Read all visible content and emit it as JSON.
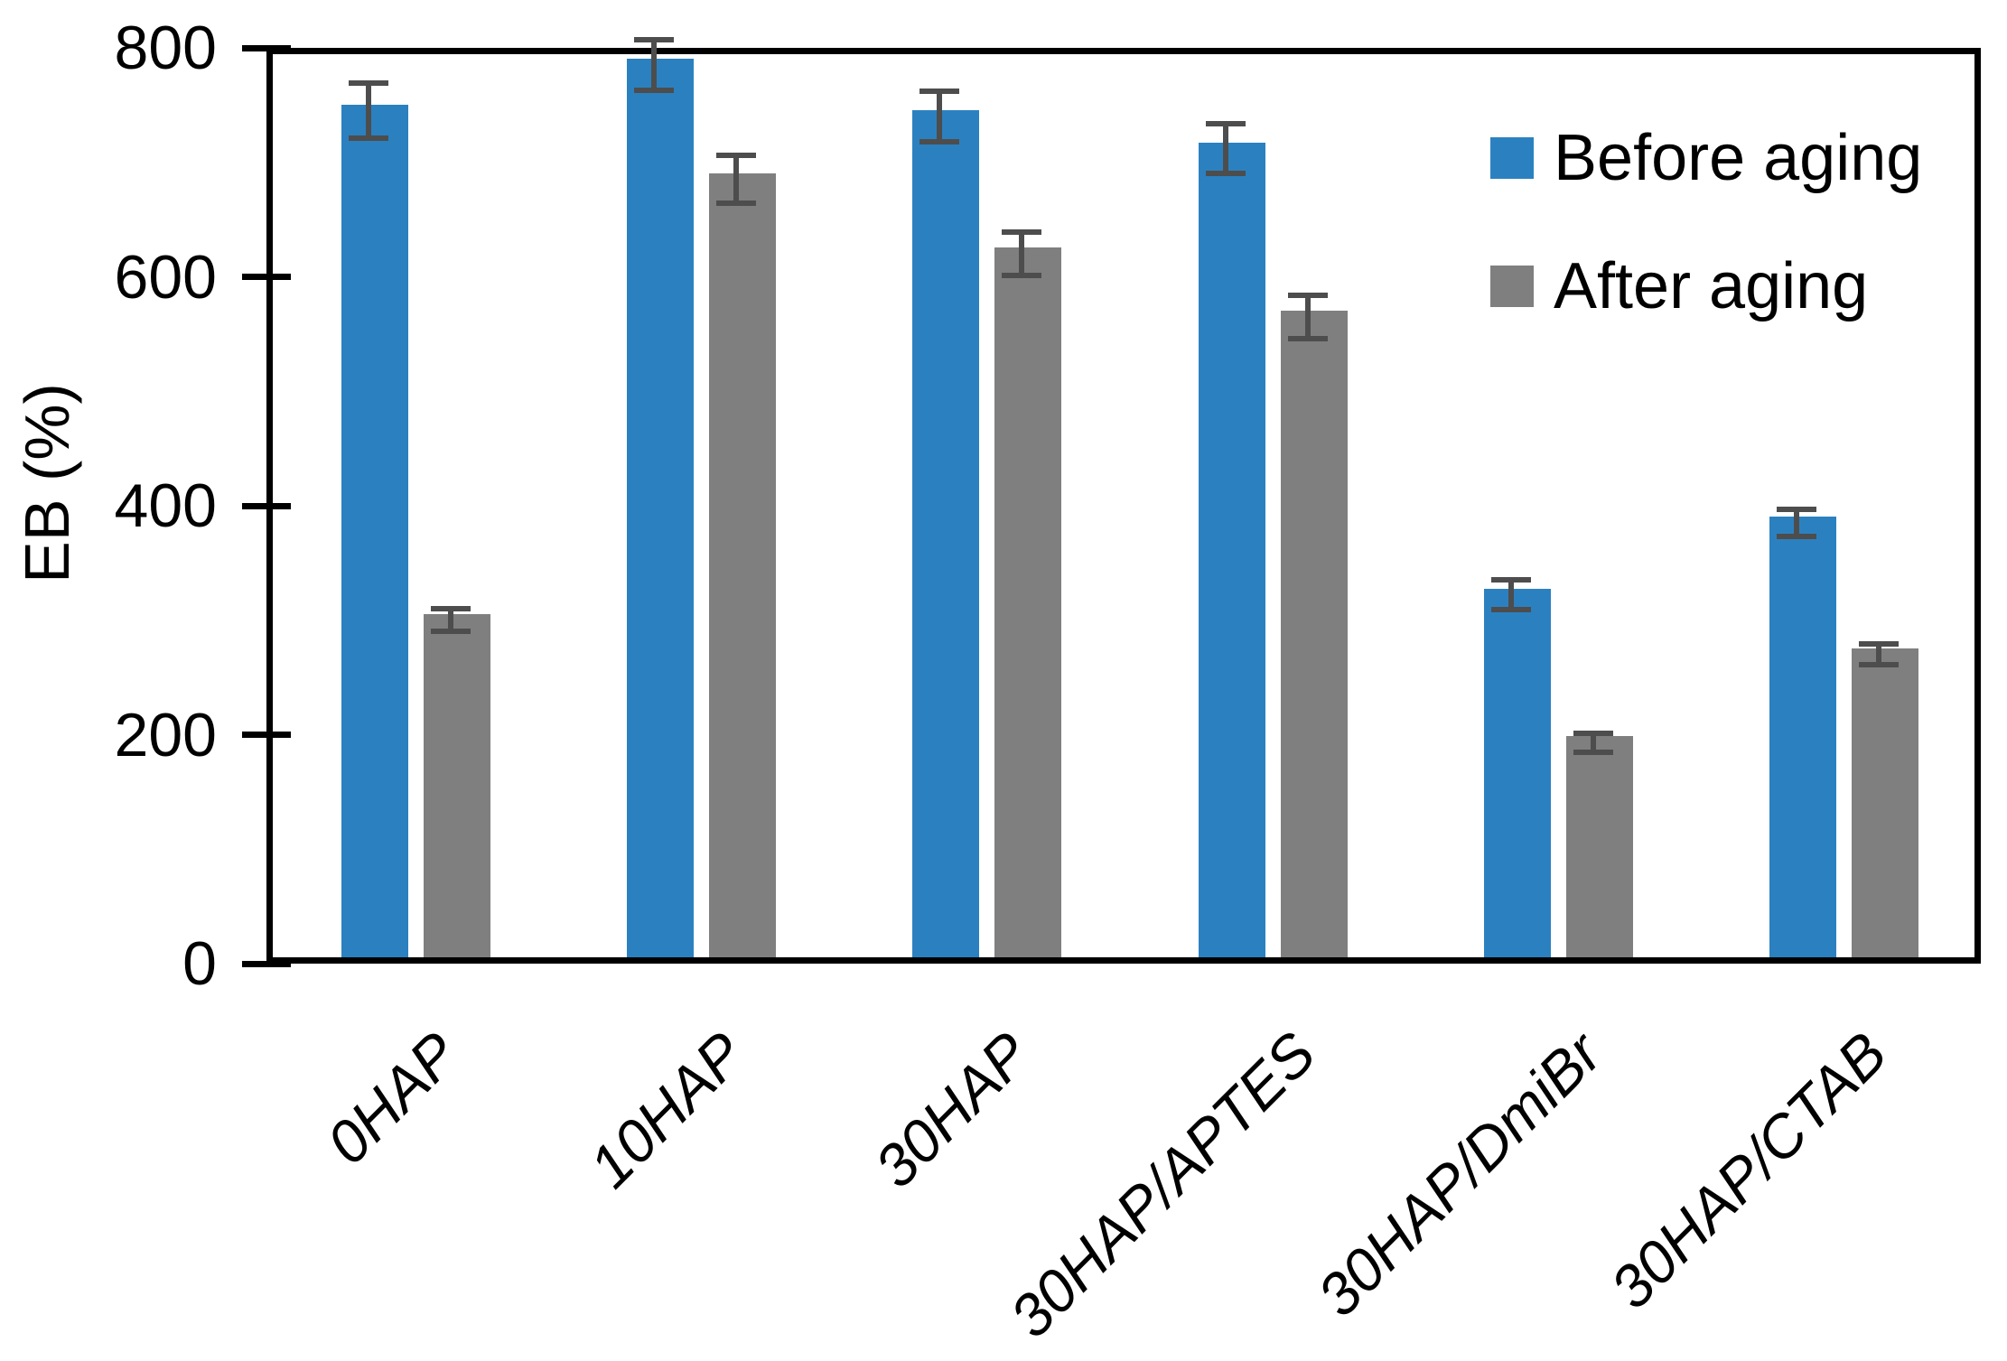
{
  "chart_data": {
    "type": "bar",
    "title": "",
    "xlabel": "",
    "ylabel": "EB (%)",
    "ylim": [
      0,
      800
    ],
    "yticks": [
      0,
      200,
      400,
      600,
      800
    ],
    "grid": false,
    "legend_position": "top-right",
    "categories": [
      "0HAP",
      "10HAP",
      "30HAP",
      "30HAP/APTES",
      "30HAP/DmiBr",
      "30HAP/CTAB"
    ],
    "series": [
      {
        "name": "Before aging",
        "color": "#2b81c0",
        "values": [
          745,
          785,
          740,
          712,
          322,
          385
        ],
        "errors": [
          24,
          22,
          22,
          22,
          13,
          12
        ]
      },
      {
        "name": "After aging",
        "color": "#7f7f7f",
        "values": [
          300,
          685,
          620,
          565,
          193,
          270
        ],
        "errors": [
          10,
          21,
          19,
          19,
          8,
          9
        ]
      }
    ],
    "error_bar_color": "#4d4d4d",
    "axis_color": "#000000"
  }
}
